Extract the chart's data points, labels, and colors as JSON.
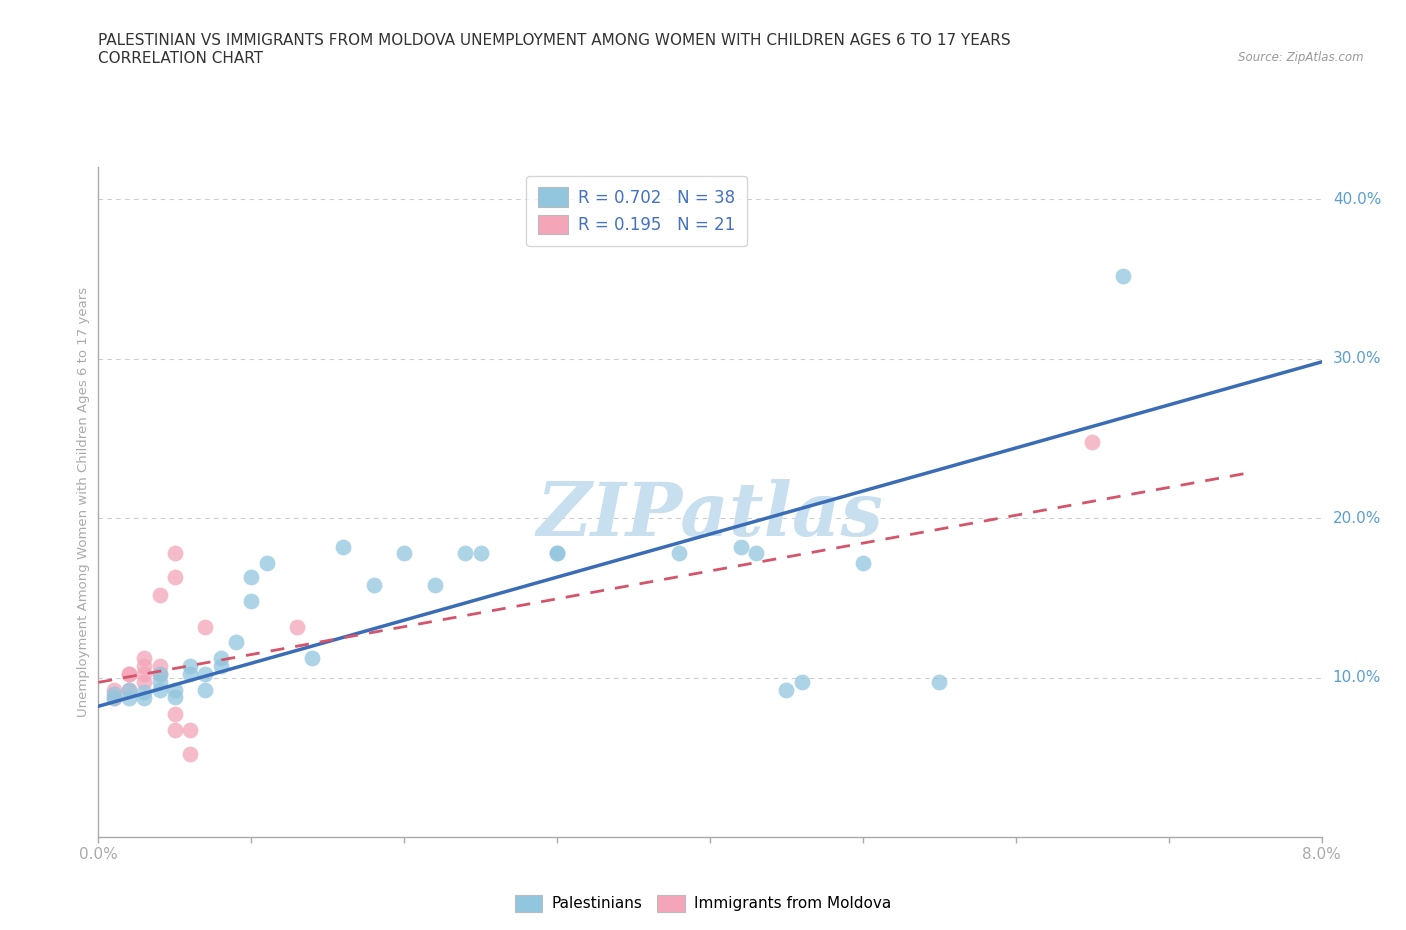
{
  "title_line1": "PALESTINIAN VS IMMIGRANTS FROM MOLDOVA UNEMPLOYMENT AMONG WOMEN WITH CHILDREN AGES 6 TO 17 YEARS",
  "title_line2": "CORRELATION CHART",
  "source": "Source: ZipAtlas.com",
  "ylabel": "Unemployment Among Women with Children Ages 6 to 17 years",
  "watermark": "ZIPatlas",
  "xmin": 0.0,
  "xmax": 0.08,
  "ymin": 0.0,
  "ymax": 0.42,
  "yticks": [
    0.1,
    0.2,
    0.3,
    0.4
  ],
  "ytick_labels": [
    "10.0%",
    "20.0%",
    "30.0%",
    "40.0%"
  ],
  "xticks": [
    0.0,
    0.01,
    0.02,
    0.03,
    0.04,
    0.05,
    0.06,
    0.07,
    0.08
  ],
  "xtick_labels": [
    "0.0%",
    "",
    "",
    "",
    "",
    "",
    "",
    "",
    "8.0%"
  ],
  "blue_color": "#92c5de",
  "pink_color": "#f4a5b8",
  "blue_line_color": "#3a6db5",
  "pink_line_color": "#d4546a",
  "axis_color": "#aaaaaa",
  "grid_color": "#cccccc",
  "title_color": "#333333",
  "right_label_color": "#5a9fd4",
  "watermark_color": "#c8dff0",
  "legend_text_color": "#333333",
  "legend_val_color": "#4472c4",
  "blue_scatter": [
    [
      0.001,
      0.087
    ],
    [
      0.001,
      0.09
    ],
    [
      0.002,
      0.087
    ],
    [
      0.002,
      0.092
    ],
    [
      0.003,
      0.087
    ],
    [
      0.003,
      0.091
    ],
    [
      0.004,
      0.092
    ],
    [
      0.004,
      0.097
    ],
    [
      0.004,
      0.102
    ],
    [
      0.005,
      0.088
    ],
    [
      0.005,
      0.092
    ],
    [
      0.006,
      0.102
    ],
    [
      0.006,
      0.107
    ],
    [
      0.007,
      0.092
    ],
    [
      0.007,
      0.102
    ],
    [
      0.008,
      0.107
    ],
    [
      0.008,
      0.112
    ],
    [
      0.009,
      0.122
    ],
    [
      0.01,
      0.148
    ],
    [
      0.01,
      0.163
    ],
    [
      0.011,
      0.172
    ],
    [
      0.014,
      0.112
    ],
    [
      0.016,
      0.182
    ],
    [
      0.018,
      0.158
    ],
    [
      0.02,
      0.178
    ],
    [
      0.022,
      0.158
    ],
    [
      0.024,
      0.178
    ],
    [
      0.025,
      0.178
    ],
    [
      0.03,
      0.178
    ],
    [
      0.03,
      0.178
    ],
    [
      0.038,
      0.178
    ],
    [
      0.042,
      0.182
    ],
    [
      0.043,
      0.178
    ],
    [
      0.045,
      0.092
    ],
    [
      0.046,
      0.097
    ],
    [
      0.05,
      0.172
    ],
    [
      0.055,
      0.097
    ],
    [
      0.067,
      0.352
    ]
  ],
  "pink_scatter": [
    [
      0.001,
      0.087
    ],
    [
      0.001,
      0.092
    ],
    [
      0.002,
      0.092
    ],
    [
      0.002,
      0.102
    ],
    [
      0.002,
      0.102
    ],
    [
      0.003,
      0.097
    ],
    [
      0.003,
      0.102
    ],
    [
      0.003,
      0.107
    ],
    [
      0.003,
      0.112
    ],
    [
      0.004,
      0.102
    ],
    [
      0.004,
      0.107
    ],
    [
      0.004,
      0.152
    ],
    [
      0.005,
      0.067
    ],
    [
      0.005,
      0.077
    ],
    [
      0.005,
      0.163
    ],
    [
      0.005,
      0.178
    ],
    [
      0.006,
      0.052
    ],
    [
      0.006,
      0.067
    ],
    [
      0.007,
      0.132
    ],
    [
      0.013,
      0.132
    ],
    [
      0.065,
      0.248
    ]
  ],
  "blue_trend_x": [
    0.0,
    0.08
  ],
  "blue_trend_y": [
    0.082,
    0.298
  ],
  "pink_trend_x": [
    0.0,
    0.075
  ],
  "pink_trend_y": [
    0.097,
    0.228
  ]
}
